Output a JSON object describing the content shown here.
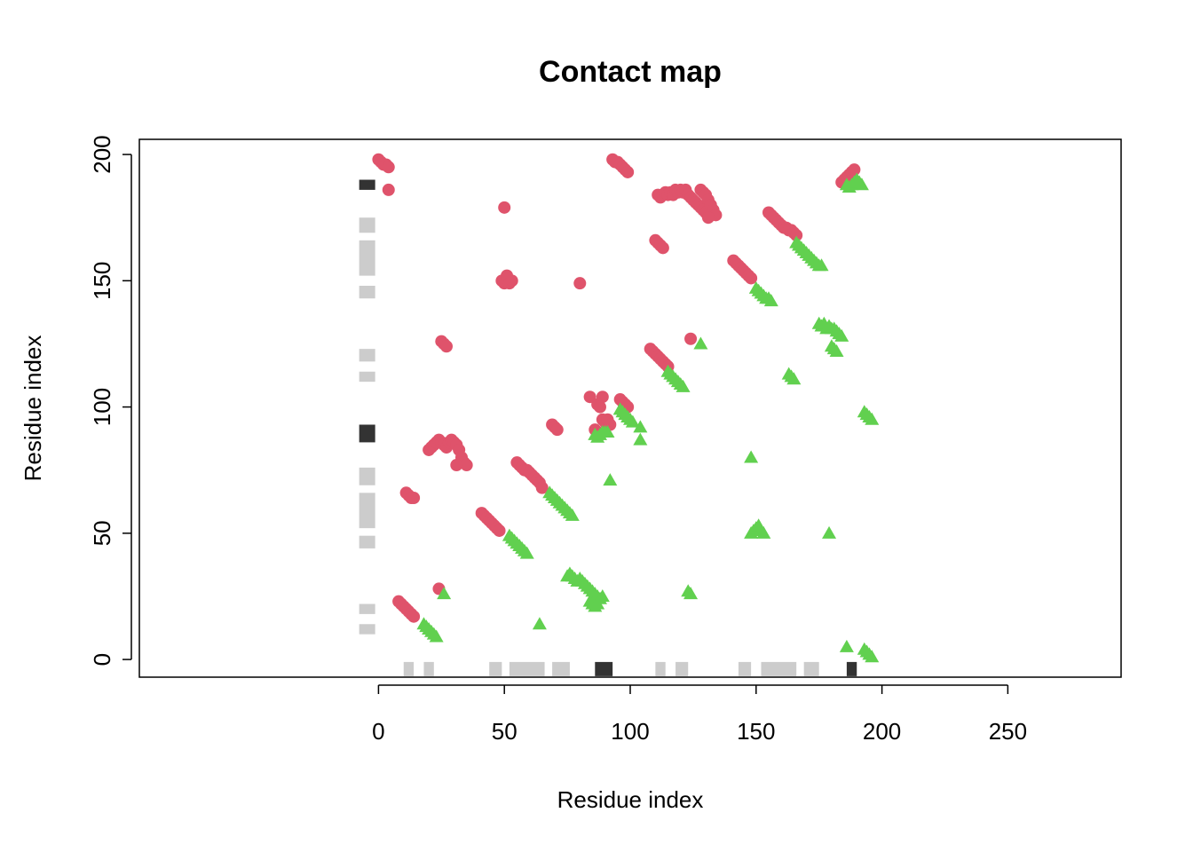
{
  "chart_data": {
    "type": "scatter",
    "title": "Contact map",
    "xlabel": "Residue index",
    "ylabel": "Residue index",
    "xlim": [
      -95,
      295
    ],
    "ylim": [
      -7,
      206
    ],
    "x_ticks": [
      0,
      50,
      100,
      150,
      200,
      250
    ],
    "y_ticks": [
      0,
      50,
      100,
      150,
      200
    ],
    "x_tick_labels": [
      "0",
      "50",
      "100",
      "150",
      "200",
      "250"
    ],
    "y_tick_labels": [
      "0",
      "50",
      "100",
      "150",
      "200"
    ],
    "grid": false,
    "legend": "none",
    "colors": {
      "red": "#DF536B",
      "green": "#61D04F",
      "gray": "#CCCCCC",
      "dark": "#333333"
    },
    "series": [
      {
        "marker": "circle",
        "color": "#DF536B",
        "points": [
          [
            0,
            198
          ],
          [
            1,
            197
          ],
          [
            2,
            196
          ],
          [
            3,
            196
          ],
          [
            4,
            195
          ],
          [
            4,
            186
          ],
          [
            50,
            179
          ],
          [
            49,
            150
          ],
          [
            50,
            149
          ],
          [
            51,
            152
          ],
          [
            52,
            149
          ],
          [
            53,
            150
          ],
          [
            80,
            149
          ],
          [
            25,
            126
          ],
          [
            26,
            125
          ],
          [
            27,
            124
          ],
          [
            93,
            198
          ],
          [
            94,
            197
          ],
          [
            95,
            197
          ],
          [
            96,
            196
          ],
          [
            97,
            195
          ],
          [
            98,
            194
          ],
          [
            99,
            193
          ],
          [
            111,
            184
          ],
          [
            112,
            183
          ],
          [
            113,
            184
          ],
          [
            114,
            185
          ],
          [
            115,
            184
          ],
          [
            116,
            185
          ],
          [
            117,
            184
          ],
          [
            118,
            186
          ],
          [
            119,
            185
          ],
          [
            120,
            186
          ],
          [
            121,
            185
          ],
          [
            122,
            186
          ],
          [
            123,
            184
          ],
          [
            124,
            183
          ],
          [
            125,
            182
          ],
          [
            126,
            181
          ],
          [
            127,
            180
          ],
          [
            128,
            179
          ],
          [
            129,
            178
          ],
          [
            130,
            177
          ],
          [
            128,
            186
          ],
          [
            129,
            185
          ],
          [
            130,
            184
          ],
          [
            131,
            182
          ],
          [
            132,
            180
          ],
          [
            133,
            178
          ],
          [
            134,
            176
          ],
          [
            131,
            175
          ],
          [
            155,
            177
          ],
          [
            156,
            176
          ],
          [
            157,
            175
          ],
          [
            158,
            174
          ],
          [
            159,
            173
          ],
          [
            160,
            172
          ],
          [
            161,
            171
          ],
          [
            162,
            171
          ],
          [
            163,
            170
          ],
          [
            164,
            170
          ],
          [
            165,
            169
          ],
          [
            166,
            168
          ],
          [
            110,
            166
          ],
          [
            111,
            165
          ],
          [
            112,
            164
          ],
          [
            113,
            163
          ],
          [
            141,
            158
          ],
          [
            142,
            157
          ],
          [
            143,
            156
          ],
          [
            144,
            155
          ],
          [
            145,
            154
          ],
          [
            146,
            153
          ],
          [
            147,
            152
          ],
          [
            148,
            151
          ],
          [
            108,
            123
          ],
          [
            109,
            122
          ],
          [
            110,
            121
          ],
          [
            111,
            120
          ],
          [
            112,
            119
          ],
          [
            113,
            118
          ],
          [
            114,
            117
          ],
          [
            115,
            116
          ],
          [
            124,
            127
          ],
          [
            84,
            104
          ],
          [
            89,
            104
          ],
          [
            87,
            101
          ],
          [
            88,
            100
          ],
          [
            89,
            95
          ],
          [
            90,
            94
          ],
          [
            91,
            95
          ],
          [
            92,
            93
          ],
          [
            86,
            91
          ],
          [
            87,
            90
          ],
          [
            88,
            89
          ],
          [
            96,
            103
          ],
          [
            97,
            102
          ],
          [
            98,
            101
          ],
          [
            99,
            100
          ],
          [
            69,
            93
          ],
          [
            70,
            92
          ],
          [
            71,
            91
          ],
          [
            20,
            83
          ],
          [
            21,
            84
          ],
          [
            22,
            85
          ],
          [
            23,
            86
          ],
          [
            24,
            87
          ],
          [
            25,
            86
          ],
          [
            26,
            85
          ],
          [
            27,
            84
          ],
          [
            28,
            86
          ],
          [
            29,
            87
          ],
          [
            30,
            86
          ],
          [
            31,
            85
          ],
          [
            32,
            83
          ],
          [
            33,
            80
          ],
          [
            34,
            78
          ],
          [
            35,
            77
          ],
          [
            31,
            77
          ],
          [
            55,
            78
          ],
          [
            56,
            77
          ],
          [
            57,
            76
          ],
          [
            58,
            75
          ],
          [
            59,
            75
          ],
          [
            60,
            74
          ],
          [
            61,
            73
          ],
          [
            62,
            72
          ],
          [
            63,
            71
          ],
          [
            64,
            70
          ],
          [
            65,
            68
          ],
          [
            11,
            66
          ],
          [
            12,
            65
          ],
          [
            13,
            64
          ],
          [
            14,
            64
          ],
          [
            41,
            58
          ],
          [
            42,
            57
          ],
          [
            43,
            56
          ],
          [
            44,
            55
          ],
          [
            45,
            54
          ],
          [
            46,
            53
          ],
          [
            47,
            52
          ],
          [
            48,
            51
          ],
          [
            8,
            23
          ],
          [
            9,
            22
          ],
          [
            10,
            21
          ],
          [
            11,
            20
          ],
          [
            12,
            19
          ],
          [
            13,
            18
          ],
          [
            14,
            17
          ],
          [
            24,
            28
          ],
          [
            184,
            189
          ],
          [
            185,
            190
          ],
          [
            186,
            191
          ],
          [
            187,
            192
          ],
          [
            188,
            193
          ],
          [
            189,
            194
          ]
        ]
      },
      {
        "marker": "triangle",
        "color": "#61D04F",
        "points": [
          [
            186,
            188
          ],
          [
            187,
            187
          ],
          [
            188,
            188
          ],
          [
            189,
            189
          ],
          [
            190,
            190
          ],
          [
            191,
            189
          ],
          [
            192,
            188
          ],
          [
            166,
            165
          ],
          [
            167,
            164
          ],
          [
            168,
            163
          ],
          [
            169,
            162
          ],
          [
            170,
            161
          ],
          [
            171,
            160
          ],
          [
            172,
            159
          ],
          [
            173,
            158
          ],
          [
            174,
            157
          ],
          [
            175,
            156
          ],
          [
            176,
            156
          ],
          [
            150,
            147
          ],
          [
            151,
            146
          ],
          [
            152,
            145
          ],
          [
            153,
            144
          ],
          [
            154,
            143
          ],
          [
            155,
            143
          ],
          [
            156,
            142
          ],
          [
            175,
            133
          ],
          [
            176,
            132
          ],
          [
            177,
            133
          ],
          [
            178,
            131
          ],
          [
            179,
            132
          ],
          [
            180,
            131
          ],
          [
            181,
            131
          ],
          [
            182,
            130
          ],
          [
            183,
            129
          ],
          [
            184,
            128
          ],
          [
            180,
            124
          ],
          [
            181,
            123
          ],
          [
            182,
            122
          ],
          [
            128,
            125
          ],
          [
            163,
            113
          ],
          [
            164,
            112
          ],
          [
            165,
            111
          ],
          [
            115,
            114
          ],
          [
            116,
            113
          ],
          [
            117,
            112
          ],
          [
            118,
            111
          ],
          [
            119,
            110
          ],
          [
            120,
            109
          ],
          [
            121,
            108
          ],
          [
            193,
            98
          ],
          [
            194,
            97
          ],
          [
            195,
            96
          ],
          [
            196,
            95
          ],
          [
            96,
            99
          ],
          [
            97,
            98
          ],
          [
            98,
            97
          ],
          [
            99,
            96
          ],
          [
            100,
            95
          ],
          [
            101,
            94
          ],
          [
            86,
            89
          ],
          [
            87,
            88
          ],
          [
            88,
            89
          ],
          [
            89,
            90
          ],
          [
            90,
            90
          ],
          [
            91,
            90
          ],
          [
            104,
            92
          ],
          [
            104,
            87
          ],
          [
            92,
            71
          ],
          [
            148,
            80
          ],
          [
            68,
            66
          ],
          [
            69,
            65
          ],
          [
            70,
            64
          ],
          [
            71,
            63
          ],
          [
            72,
            62
          ],
          [
            73,
            61
          ],
          [
            74,
            60
          ],
          [
            75,
            59
          ],
          [
            76,
            58
          ],
          [
            77,
            57
          ],
          [
            52,
            49
          ],
          [
            53,
            48
          ],
          [
            54,
            47
          ],
          [
            55,
            46
          ],
          [
            56,
            45
          ],
          [
            57,
            44
          ],
          [
            58,
            43
          ],
          [
            59,
            42
          ],
          [
            148,
            50
          ],
          [
            149,
            51
          ],
          [
            150,
            52
          ],
          [
            151,
            53
          ],
          [
            152,
            51
          ],
          [
            153,
            50
          ],
          [
            179,
            50
          ],
          [
            75,
            33
          ],
          [
            76,
            34
          ],
          [
            77,
            33
          ],
          [
            78,
            32
          ],
          [
            79,
            31
          ],
          [
            80,
            32
          ],
          [
            81,
            31
          ],
          [
            82,
            30
          ],
          [
            83,
            29
          ],
          [
            84,
            28
          ],
          [
            85,
            27
          ],
          [
            86,
            26
          ],
          [
            87,
            25
          ],
          [
            88,
            24
          ],
          [
            89,
            25
          ],
          [
            84,
            23
          ],
          [
            85,
            22
          ],
          [
            86,
            21
          ],
          [
            87,
            22
          ],
          [
            123,
            27
          ],
          [
            124,
            26
          ],
          [
            18,
            14
          ],
          [
            19,
            13
          ],
          [
            20,
            12
          ],
          [
            21,
            11
          ],
          [
            22,
            10
          ],
          [
            23,
            9
          ],
          [
            26,
            26
          ],
          [
            64,
            14
          ],
          [
            186,
            5
          ],
          [
            193,
            4
          ],
          [
            194,
            3
          ],
          [
            195,
            2
          ],
          [
            196,
            1
          ]
        ]
      }
    ],
    "y_strip_gray": [
      [
        10,
        14
      ],
      [
        18,
        22
      ],
      [
        44,
        49
      ],
      [
        52,
        66
      ],
      [
        69,
        76
      ],
      [
        110,
        114
      ],
      [
        118,
        123
      ],
      [
        143,
        148
      ],
      [
        152,
        166
      ],
      [
        169,
        175
      ]
    ],
    "y_strip_dark": [
      [
        86,
        93
      ],
      [
        186,
        190
      ]
    ],
    "x_strip_gray": [
      [
        10,
        14
      ],
      [
        18,
        22
      ],
      [
        44,
        49
      ],
      [
        52,
        66
      ],
      [
        69,
        76
      ],
      [
        110,
        114
      ],
      [
        118,
        123
      ],
      [
        143,
        148
      ],
      [
        152,
        166
      ],
      [
        169,
        175
      ]
    ],
    "x_strip_dark": [
      [
        86,
        93
      ],
      [
        186,
        190
      ]
    ]
  }
}
